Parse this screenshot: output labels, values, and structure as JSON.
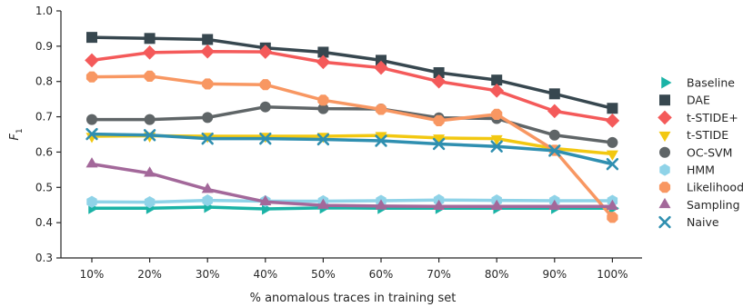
{
  "chart_data": {
    "type": "line",
    "title": "",
    "xlabel": "% anomalous traces in training set",
    "ylabel": "F",
    "ylabel_subscript": "1",
    "categories": [
      "10%",
      "20%",
      "30%",
      "40%",
      "50%",
      "60%",
      "70%",
      "80%",
      "90%",
      "100%"
    ],
    "ylim": [
      0.3,
      1.0
    ],
    "yticks": [
      "0.3",
      "0.4",
      "0.5",
      "0.6",
      "0.7",
      "0.8",
      "0.9",
      "1.0"
    ],
    "grid": false,
    "legend_position": "right",
    "series": [
      {
        "name": "Baseline",
        "color": "#1ab3a6",
        "marker": "triangle-right",
        "values": [
          0.441,
          0.441,
          0.444,
          0.439,
          0.442,
          0.441,
          0.441,
          0.441,
          0.441,
          0.441
        ]
      },
      {
        "name": "DAE",
        "color": "#37474f",
        "marker": "square",
        "values": [
          0.925,
          0.922,
          0.919,
          0.895,
          0.883,
          0.86,
          0.825,
          0.804,
          0.765,
          0.724
        ]
      },
      {
        "name": "t-STIDE+",
        "color": "#f45a5a",
        "marker": "diamond",
        "values": [
          0.86,
          0.882,
          0.885,
          0.884,
          0.855,
          0.839,
          0.8,
          0.774,
          0.716,
          0.689
        ]
      },
      {
        "name": "t-STIDE",
        "color": "#f2c811",
        "marker": "triangle-down",
        "values": [
          0.645,
          0.646,
          0.645,
          0.645,
          0.645,
          0.647,
          0.64,
          0.638,
          0.61,
          0.595
        ]
      },
      {
        "name": "OC-SVM",
        "color": "#5f6567",
        "marker": "circle",
        "values": [
          0.692,
          0.692,
          0.698,
          0.728,
          0.723,
          0.722,
          0.697,
          0.695,
          0.648,
          0.627
        ]
      },
      {
        "name": "HMM",
        "color": "#8fd3e8",
        "marker": "hexagon",
        "values": [
          0.459,
          0.458,
          0.463,
          0.461,
          0.461,
          0.462,
          0.464,
          0.463,
          0.462,
          0.462
        ]
      },
      {
        "name": "Likelihood",
        "color": "#f89762",
        "marker": "octagon",
        "values": [
          0.813,
          0.815,
          0.793,
          0.791,
          0.747,
          0.721,
          0.689,
          0.707,
          0.605,
          0.415
        ]
      },
      {
        "name": "Sampling",
        "color": "#a3689a",
        "marker": "triangle-up",
        "values": [
          0.566,
          0.54,
          0.494,
          0.459,
          0.449,
          0.447,
          0.446,
          0.446,
          0.446,
          0.446
        ]
      },
      {
        "name": "Naive",
        "color": "#2f8fb0",
        "marker": "x",
        "values": [
          0.651,
          0.648,
          0.638,
          0.638,
          0.636,
          0.632,
          0.623,
          0.616,
          0.604,
          0.566
        ]
      }
    ]
  }
}
